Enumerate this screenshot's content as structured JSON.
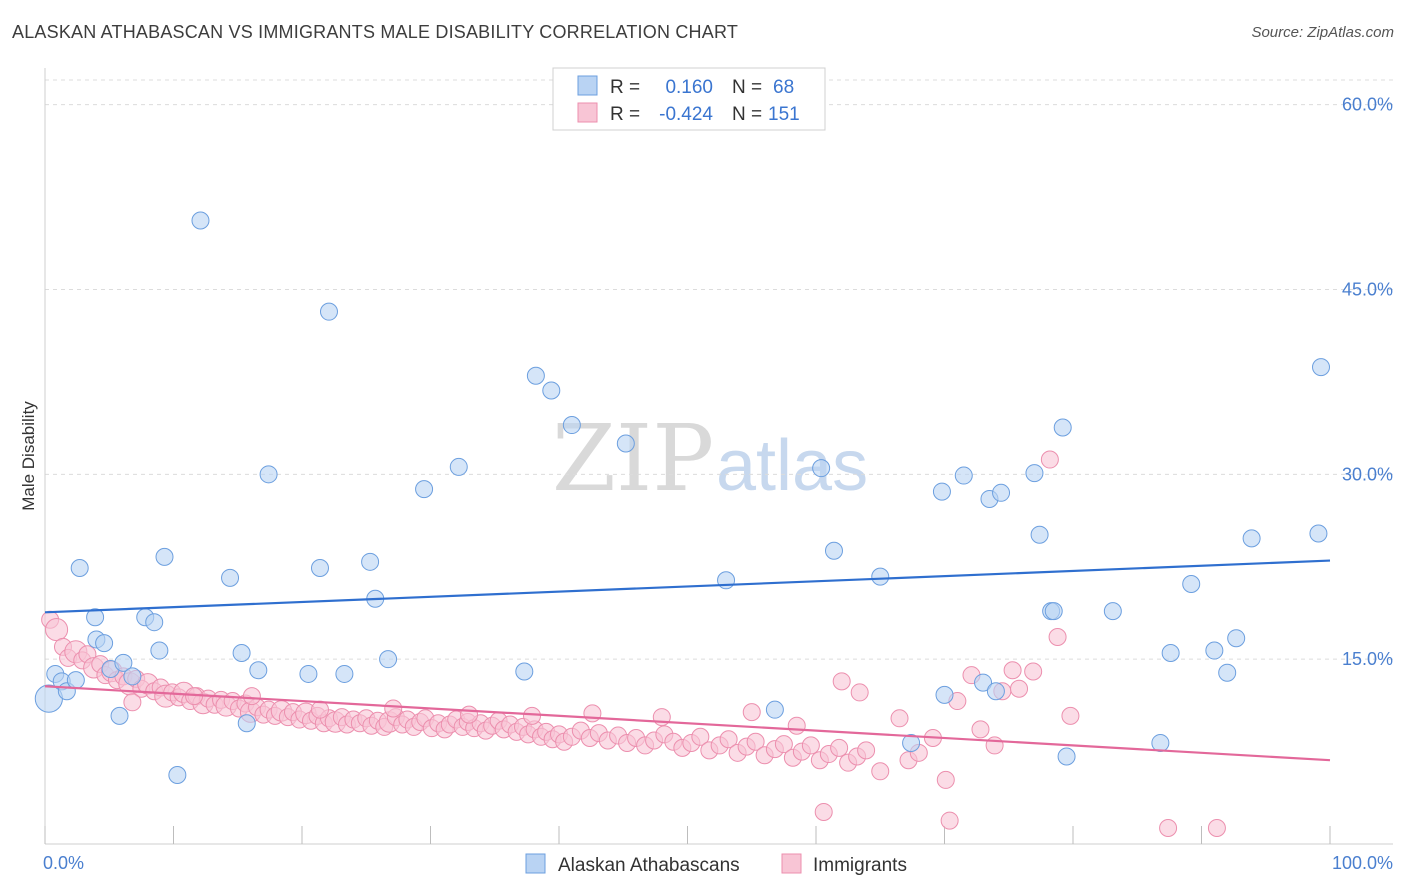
{
  "title": "ALASKAN ATHABASCAN VS IMMIGRANTS MALE DISABILITY CORRELATION CHART",
  "source": "Source: ZipAtlas.com",
  "watermark": {
    "zip": "ZIP",
    "atlas": "atlas"
  },
  "legend": {
    "rows": [
      {
        "r_label": "R =",
        "r_value": "0.160",
        "n_label": "N =",
        "n_value": "68"
      },
      {
        "r_label": "R =",
        "r_value": "-0.424",
        "n_label": "N =",
        "n_value": "151"
      }
    ]
  },
  "colors": {
    "blue_fill": "#b9d3f3",
    "blue_stroke": "#6c9fdf",
    "blue_line": "#2f6fcf",
    "pink_fill": "#f8c5d5",
    "pink_stroke": "#ec8fae",
    "pink_line": "#e3689a",
    "grid": "#dcdcdc",
    "axis_label": "#4a7fcf"
  },
  "chart_data": {
    "type": "scatter",
    "ylabel": "Male Disability",
    "xlim": [
      0,
      100
    ],
    "ylim": [
      0,
      62
    ],
    "x_tick_labels": [
      "0.0%",
      "100.0%"
    ],
    "y_ticks": [
      15,
      30,
      45,
      60
    ],
    "y_tick_labels": [
      "15.0%",
      "30.0%",
      "45.0%",
      "60.0%"
    ],
    "grid": true,
    "legend_position": "top-center",
    "series": [
      {
        "name": "Alaskan Athabascans",
        "trend": {
          "x": [
            0,
            100
          ],
          "y": [
            18.8,
            23.0
          ]
        },
        "points": [
          [
            0.3,
            11.8,
            1.6
          ],
          [
            0.8,
            13.8,
            1
          ],
          [
            1.3,
            13.2,
            1
          ],
          [
            1.7,
            12.4,
            1
          ],
          [
            2.4,
            13.3,
            1
          ],
          [
            2.7,
            22.4,
            1
          ],
          [
            3.9,
            18.4,
            1
          ],
          [
            4.0,
            16.6,
            1
          ],
          [
            4.6,
            16.3,
            1
          ],
          [
            5.1,
            14.2,
            1
          ],
          [
            5.8,
            10.4,
            1
          ],
          [
            6.1,
            14.7,
            1
          ],
          [
            6.8,
            13.6,
            1
          ],
          [
            7.8,
            18.4,
            1
          ],
          [
            8.5,
            18.0,
            1
          ],
          [
            8.9,
            15.7,
            1
          ],
          [
            9.3,
            23.3,
            1
          ],
          [
            10.3,
            5.6,
            1
          ],
          [
            12.1,
            50.6,
            1
          ],
          [
            14.4,
            21.6,
            1
          ],
          [
            15.3,
            15.5,
            1
          ],
          [
            15.7,
            9.8,
            1
          ],
          [
            16.6,
            14.1,
            1
          ],
          [
            17.4,
            30.0,
            1
          ],
          [
            20.5,
            13.8,
            1
          ],
          [
            21.4,
            22.4,
            1
          ],
          [
            22.1,
            43.2,
            1
          ],
          [
            23.3,
            13.8,
            1
          ],
          [
            25.3,
            22.9,
            1
          ],
          [
            25.7,
            19.9,
            1
          ],
          [
            26.7,
            15.0,
            1
          ],
          [
            29.5,
            28.8,
            1
          ],
          [
            32.2,
            30.6,
            1
          ],
          [
            37.3,
            14.0,
            1
          ],
          [
            38.2,
            38.0,
            1
          ],
          [
            39.4,
            36.8,
            1
          ],
          [
            41.0,
            34.0,
            1
          ],
          [
            45.2,
            32.5,
            1
          ],
          [
            53.0,
            21.4,
            1
          ],
          [
            56.8,
            10.9,
            1
          ],
          [
            60.4,
            30.5,
            1
          ],
          [
            61.4,
            23.8,
            1
          ],
          [
            65.0,
            21.7,
            1
          ],
          [
            67.4,
            8.2,
            1
          ],
          [
            69.8,
            28.6,
            1
          ],
          [
            70.0,
            12.1,
            1
          ],
          [
            71.5,
            29.9,
            1
          ],
          [
            73.0,
            13.1,
            1
          ],
          [
            73.5,
            28.0,
            1
          ],
          [
            74.0,
            12.4,
            1
          ],
          [
            74.4,
            28.5,
            1
          ],
          [
            77.0,
            30.1,
            1
          ],
          [
            77.4,
            25.1,
            1
          ],
          [
            78.3,
            18.9,
            1
          ],
          [
            78.5,
            18.9,
            1
          ],
          [
            79.2,
            33.8,
            1
          ],
          [
            79.5,
            7.1,
            1
          ],
          [
            83.1,
            18.9,
            1
          ],
          [
            86.8,
            8.2,
            1
          ],
          [
            87.6,
            15.5,
            1
          ],
          [
            89.2,
            21.1,
            1
          ],
          [
            91.0,
            15.7,
            1
          ],
          [
            92.0,
            13.9,
            1
          ],
          [
            92.7,
            16.7,
            1
          ],
          [
            93.9,
            24.8,
            1
          ],
          [
            99.1,
            25.2,
            1
          ],
          [
            99.3,
            38.7,
            1
          ]
        ]
      },
      {
        "name": "Immigrants",
        "trend": {
          "x": [
            0,
            100
          ],
          "y": [
            12.8,
            6.8
          ]
        },
        "points": [
          [
            0.4,
            18.2,
            1
          ],
          [
            0.9,
            17.4,
            1.3
          ],
          [
            1.4,
            16.0,
            1
          ],
          [
            1.8,
            15.1,
            1
          ],
          [
            2.4,
            15.6,
            1.3
          ],
          [
            2.9,
            14.9,
            1
          ],
          [
            3.3,
            15.4,
            1
          ],
          [
            3.8,
            14.3,
            1.2
          ],
          [
            4.3,
            14.6,
            1
          ],
          [
            4.7,
            13.7,
            1
          ],
          [
            5.2,
            14.0,
            1.2
          ],
          [
            5.6,
            13.3,
            1
          ],
          [
            6.1,
            13.6,
            1
          ],
          [
            6.6,
            13.0,
            1.3
          ],
          [
            7.1,
            13.4,
            1
          ],
          [
            7.5,
            12.6,
            1
          ],
          [
            8.0,
            13.0,
            1.2
          ],
          [
            8.5,
            12.4,
            1
          ],
          [
            9.0,
            12.7,
            1
          ],
          [
            9.4,
            12.0,
            1.3
          ],
          [
            9.9,
            12.3,
            1
          ],
          [
            10.4,
            11.9,
            1
          ],
          [
            10.8,
            12.3,
            1.2
          ],
          [
            11.3,
            11.6,
            1
          ],
          [
            11.8,
            12.0,
            1
          ],
          [
            12.3,
            11.4,
            1.2
          ],
          [
            12.7,
            11.8,
            1
          ],
          [
            13.2,
            11.3,
            1
          ],
          [
            13.7,
            11.7,
            1
          ],
          [
            14.1,
            11.2,
            1.2
          ],
          [
            14.6,
            11.6,
            1
          ],
          [
            15.1,
            11.0,
            1
          ],
          [
            15.6,
            11.4,
            1
          ],
          [
            16.0,
            10.7,
            1.2
          ],
          [
            16.5,
            11.1,
            1
          ],
          [
            17.0,
            10.5,
            1
          ],
          [
            17.4,
            10.9,
            1
          ],
          [
            17.9,
            10.4,
            1
          ],
          [
            18.4,
            10.8,
            1.2
          ],
          [
            18.9,
            10.3,
            1
          ],
          [
            19.3,
            10.7,
            1
          ],
          [
            19.8,
            10.1,
            1
          ],
          [
            20.3,
            10.6,
            1.2
          ],
          [
            20.7,
            10.0,
            1
          ],
          [
            21.2,
            10.4,
            1
          ],
          [
            21.7,
            9.8,
            1
          ],
          [
            22.1,
            10.2,
            1
          ],
          [
            22.6,
            9.9,
            1.2
          ],
          [
            23.1,
            10.3,
            1
          ],
          [
            23.5,
            9.7,
            1
          ],
          [
            24.0,
            10.1,
            1
          ],
          [
            24.5,
            9.8,
            1
          ],
          [
            25.0,
            10.2,
            1
          ],
          [
            25.4,
            9.6,
            1
          ],
          [
            25.9,
            10.0,
            1
          ],
          [
            26.4,
            9.5,
            1
          ],
          [
            26.8,
            9.9,
            1.2
          ],
          [
            27.3,
            10.3,
            1
          ],
          [
            27.8,
            9.7,
            1
          ],
          [
            28.2,
            10.1,
            1
          ],
          [
            28.7,
            9.5,
            1
          ],
          [
            29.2,
            9.9,
            1
          ],
          [
            29.6,
            10.2,
            1
          ],
          [
            30.1,
            9.4,
            1
          ],
          [
            30.6,
            9.8,
            1
          ],
          [
            31.1,
            9.3,
            1
          ],
          [
            31.5,
            9.7,
            1
          ],
          [
            32.0,
            10.1,
            1
          ],
          [
            32.5,
            9.5,
            1
          ],
          [
            32.9,
            9.9,
            1
          ],
          [
            33.4,
            9.4,
            1
          ],
          [
            33.9,
            9.8,
            1
          ],
          [
            34.3,
            9.2,
            1
          ],
          [
            34.8,
            9.6,
            1
          ],
          [
            35.3,
            10.0,
            1
          ],
          [
            35.7,
            9.3,
            1
          ],
          [
            36.2,
            9.7,
            1
          ],
          [
            36.7,
            9.1,
            1
          ],
          [
            37.2,
            9.5,
            1
          ],
          [
            37.6,
            8.9,
            1
          ],
          [
            38.1,
            9.3,
            1
          ],
          [
            38.6,
            8.7,
            1
          ],
          [
            39.0,
            9.1,
            1
          ],
          [
            39.5,
            8.5,
            1
          ],
          [
            40.0,
            8.9,
            1
          ],
          [
            40.4,
            8.3,
            1
          ],
          [
            41.0,
            8.7,
            1
          ],
          [
            41.7,
            9.2,
            1
          ],
          [
            42.4,
            8.6,
            1
          ],
          [
            43.1,
            9.0,
            1
          ],
          [
            43.8,
            8.4,
            1
          ],
          [
            44.6,
            8.8,
            1
          ],
          [
            45.3,
            8.2,
            1
          ],
          [
            46.0,
            8.6,
            1
          ],
          [
            46.7,
            8.0,
            1
          ],
          [
            47.4,
            8.4,
            1
          ],
          [
            48.2,
            8.9,
            1
          ],
          [
            48.9,
            8.3,
            1
          ],
          [
            49.6,
            7.8,
            1
          ],
          [
            50.3,
            8.2,
            1
          ],
          [
            51.0,
            8.7,
            1
          ],
          [
            51.7,
            7.6,
            1
          ],
          [
            52.5,
            8.0,
            1
          ],
          [
            53.2,
            8.5,
            1
          ],
          [
            53.9,
            7.4,
            1
          ],
          [
            54.6,
            7.9,
            1
          ],
          [
            55.3,
            8.3,
            1
          ],
          [
            56.0,
            7.2,
            1
          ],
          [
            56.8,
            7.7,
            1
          ],
          [
            57.5,
            8.1,
            1
          ],
          [
            58.2,
            7.0,
            1
          ],
          [
            58.9,
            7.5,
            1
          ],
          [
            59.6,
            8.0,
            1
          ],
          [
            60.3,
            6.8,
            1
          ],
          [
            61.0,
            7.3,
            1
          ],
          [
            61.8,
            7.8,
            1
          ],
          [
            62.5,
            6.6,
            1
          ],
          [
            63.2,
            7.1,
            1
          ],
          [
            63.9,
            7.6,
            1
          ],
          [
            65.0,
            5.9,
            1
          ],
          [
            60.6,
            2.6,
            1
          ],
          [
            67.2,
            6.8,
            1
          ],
          [
            68.0,
            7.4,
            1
          ],
          [
            69.1,
            8.6,
            1
          ],
          [
            70.1,
            5.2,
            1
          ],
          [
            71.0,
            11.6,
            1
          ],
          [
            72.1,
            13.7,
            1
          ],
          [
            72.8,
            9.3,
            1
          ],
          [
            74.5,
            12.4,
            1
          ],
          [
            75.3,
            14.1,
            1
          ],
          [
            76.9,
            14.0,
            1
          ],
          [
            78.8,
            16.8,
            1
          ],
          [
            78.2,
            31.2,
            1
          ],
          [
            87.4,
            1.3,
            1
          ],
          [
            91.2,
            1.3,
            1
          ],
          [
            70.4,
            1.9,
            1
          ],
          [
            62.0,
            13.2,
            1
          ],
          [
            55.0,
            10.7,
            1
          ],
          [
            48.0,
            10.3,
            1
          ],
          [
            42.6,
            10.6,
            1
          ],
          [
            37.9,
            10.4,
            1
          ],
          [
            33.0,
            10.5,
            1
          ],
          [
            27.1,
            11.0,
            1
          ],
          [
            21.4,
            10.9,
            1
          ],
          [
            16.1,
            12.0,
            1
          ],
          [
            11.6,
            12.0,
            1
          ],
          [
            6.8,
            11.5,
            1
          ],
          [
            58.5,
            9.6,
            1
          ],
          [
            63.4,
            12.3,
            1
          ],
          [
            66.5,
            10.2,
            1
          ],
          [
            73.9,
            8.0,
            1
          ],
          [
            75.8,
            12.6,
            1
          ],
          [
            79.8,
            10.4,
            1
          ]
        ]
      }
    ]
  },
  "bottom_legend": [
    "Alaskan Athabascans",
    "Immigrants"
  ]
}
